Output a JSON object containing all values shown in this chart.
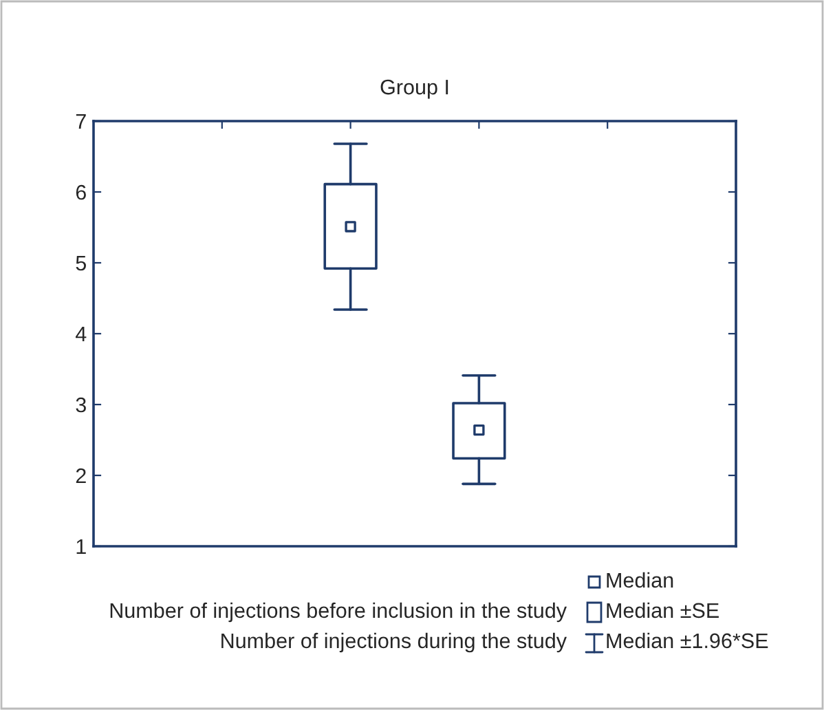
{
  "chart_data": {
    "type": "box",
    "title": "Group I",
    "categories": [
      null,
      null
    ],
    "boxes": [
      {
        "low": 4.34,
        "q1": 4.92,
        "median": 5.51,
        "q3": 6.11,
        "high": 6.68
      },
      {
        "low": 1.88,
        "q1": 2.24,
        "median": 2.64,
        "q3": 3.02,
        "high": 3.41
      }
    ],
    "color": "#1f3b6b",
    "ylim": [
      1,
      7
    ],
    "yticks": [
      1,
      2,
      3,
      4,
      5,
      6,
      7
    ],
    "grid": false,
    "annotations": [
      "Median",
      "Median ±SE",
      "Median ±1.96*SE",
      "Number of injections before inclusion in the study",
      "Number of injections during the study"
    ]
  }
}
